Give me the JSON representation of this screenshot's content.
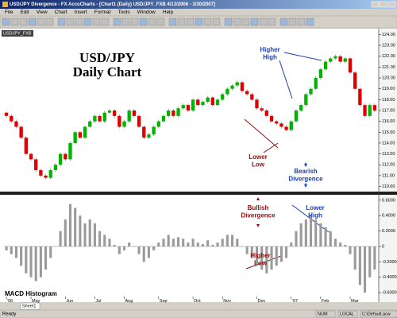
{
  "window": {
    "title": "USD/JPY Divergence - FX AccuCharts - [Chart1 (Daily) USD/JPY_FXB 4/13/2006 - 3/30/2007]"
  },
  "menu": [
    "File",
    "Edit",
    "View",
    "Chart",
    "Insert",
    "Format",
    "Tools",
    "Window",
    "Help"
  ],
  "chart_data": [
    {
      "type": "candlestick",
      "title": "USD/JPY",
      "subtitle": "Daily Chart",
      "series_name": "USDJPY_FXB",
      "up_color": "#00b400",
      "down_color": "#e00000",
      "categories": [
        "'06",
        null,
        null,
        null,
        null,
        "May",
        null,
        null,
        null,
        null,
        null,
        null,
        "Jun",
        null,
        null,
        null,
        null,
        null,
        "Jul",
        null,
        null,
        null,
        null,
        null,
        "Aug",
        null,
        null,
        null,
        null,
        null,
        null,
        "Sep",
        null,
        null,
        null,
        null,
        null,
        null,
        "Oct",
        null,
        null,
        null,
        null,
        null,
        "Nov",
        null,
        null,
        null,
        null,
        null,
        null,
        "Dec",
        null,
        null,
        null,
        null,
        null,
        null,
        "'07",
        null,
        null,
        null,
        null,
        null,
        "Feb",
        null,
        null,
        null,
        null,
        null,
        "Mar",
        null,
        null,
        null,
        null,
        null
      ],
      "open": [
        116.8,
        116.5,
        116,
        115.5,
        114.5,
        113,
        112.5,
        111.5,
        111,
        110.8,
        111.5,
        112,
        113,
        112.5,
        114,
        115,
        114.5,
        115.5,
        116,
        116.5,
        116,
        116.8,
        117,
        116.5,
        115.5,
        116,
        117,
        116.5,
        115.5,
        114.5,
        114.8,
        115.5,
        116,
        116.5,
        117,
        116.5,
        117.2,
        117.5,
        117,
        118,
        117.5,
        117.8,
        118.2,
        117.5,
        118,
        118.5,
        119,
        119.3,
        119.6,
        118.8,
        118.5,
        118,
        117.2,
        117,
        116.5,
        116,
        115.8,
        115.5,
        115.2,
        116,
        117,
        117.5,
        118.5,
        119,
        120,
        120.8,
        121.5,
        121.8,
        122,
        121.5,
        121.8,
        120.5,
        119,
        117.5,
        116.5,
        117.5
      ],
      "close": [
        116.5,
        116,
        115.5,
        114.5,
        113,
        112.5,
        111.5,
        111,
        110.8,
        111.5,
        112,
        113,
        112.5,
        114,
        115,
        114.5,
        115.5,
        116,
        116.5,
        116,
        116.8,
        117,
        116.5,
        115.5,
        116,
        117,
        116.5,
        115.5,
        114.5,
        114.8,
        115.5,
        116,
        116.5,
        117,
        116.5,
        117.2,
        117.5,
        117,
        118,
        117.5,
        117.8,
        118.2,
        117.5,
        118,
        118.5,
        119,
        119.3,
        119.6,
        118.8,
        118.5,
        118,
        117.2,
        117,
        116.5,
        116,
        115.8,
        115.5,
        115.2,
        116,
        117,
        117.5,
        118.5,
        119,
        120,
        120.8,
        121.5,
        121.8,
        122,
        121.5,
        121.8,
        120.5,
        119,
        117.5,
        116.5,
        117.5,
        117
      ],
      "ylim": [
        109.6,
        124.4
      ],
      "yticks": [
        {
          "value": 110,
          "label": "110.00"
        },
        {
          "value": 111,
          "label": "111.00"
        },
        {
          "value": 112,
          "label": "112.00"
        },
        {
          "value": 113,
          "label": "113.00"
        },
        {
          "value": 114,
          "label": "114.00"
        },
        {
          "value": 115,
          "label": "115.00"
        },
        {
          "value": 116,
          "label": "116.00"
        },
        {
          "value": 117,
          "label": "117.00"
        },
        {
          "value": 118,
          "label": "118.00"
        },
        {
          "value": 119,
          "label": "119.00"
        },
        {
          "value": 120,
          "label": "120.00"
        },
        {
          "value": 121,
          "label": "121.00"
        },
        {
          "value": 122,
          "label": "122.00"
        },
        {
          "value": 123,
          "label": "123.00"
        },
        {
          "value": 124,
          "label": "124.00"
        }
      ],
      "annotations": [
        {
          "lines": [
            "Higher",
            "High"
          ],
          "color": "#1c3fb0"
        },
        {
          "lines": [
            "Lower",
            "Low"
          ],
          "color": "#8b1010"
        },
        {
          "lines": [
            "Bearish",
            "Divergence"
          ],
          "color": "#1c3fb0"
        }
      ]
    },
    {
      "type": "histogram",
      "title": "MACD Histogram",
      "color": "#9a9a9a",
      "values": [
        -0.05,
        -0.1,
        -0.15,
        -0.25,
        -0.35,
        -0.4,
        -0.45,
        -0.4,
        -0.3,
        -0.15,
        0.0,
        0.2,
        0.35,
        0.55,
        0.5,
        0.4,
        0.3,
        0.35,
        0.3,
        0.2,
        0.15,
        0.1,
        0.02,
        -0.1,
        -0.05,
        0.05,
        0.0,
        -0.1,
        -0.2,
        -0.15,
        -0.05,
        0.05,
        0.1,
        0.15,
        0.1,
        0.12,
        0.1,
        0.05,
        0.1,
        0.05,
        0.03,
        0.08,
        0.02,
        0.05,
        0.1,
        0.15,
        0.15,
        0.1,
        0.0,
        -0.1,
        -0.15,
        -0.25,
        -0.3,
        -0.35,
        -0.3,
        -0.25,
        -0.2,
        -0.15,
        0.05,
        0.2,
        0.3,
        0.35,
        0.4,
        0.35,
        0.3,
        0.25,
        0.2,
        0.1,
        0.05,
        0.02,
        -0.1,
        -0.3,
        -0.5,
        -0.6,
        -0.4,
        -0.3
      ],
      "ylim": [
        -0.65,
        0.65
      ],
      "yticks": [
        {
          "value": 0.6,
          "label": "0.6000"
        },
        {
          "value": 0.4,
          "label": "0.4000"
        },
        {
          "value": 0.2,
          "label": "0.2000"
        },
        0,
        {
          "value": -0.2,
          "label": "-0.2000"
        },
        {
          "value": -0.4,
          "label": "-0.4000"
        },
        {
          "value": -0.6,
          "label": "-0.6000"
        }
      ],
      "annotations": [
        {
          "lines": [
            "Bullish",
            "Divergence"
          ],
          "color": "#8b1010"
        },
        {
          "lines": [
            "Lower",
            "High"
          ],
          "color": "#1c3fb0"
        },
        {
          "lines": [
            "Higher",
            "Low"
          ],
          "color": "#8b1010"
        }
      ]
    }
  ],
  "sheet_tab": "Sheet1",
  "status_bar": {
    "left": "Ready",
    "right": [
      "NUM",
      "LOCAL",
      "C:\\Default.acw"
    ]
  }
}
